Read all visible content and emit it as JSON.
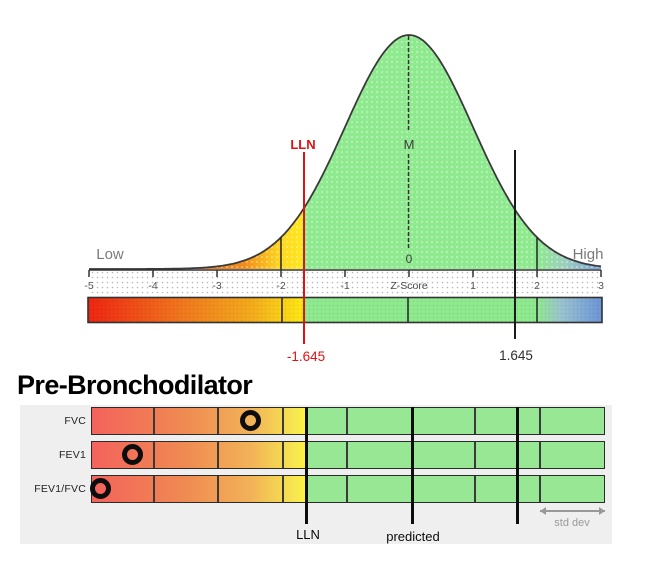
{
  "distribution_chart": {
    "low_label": "Low",
    "high_label": "High",
    "lln_label": "LLN",
    "mean_label": "M",
    "zero_label": "0",
    "axis_label": "Z-Score",
    "tick_labels": [
      "-5",
      "-4",
      "-3",
      "-2",
      "-1",
      "1",
      "2",
      "3"
    ],
    "lln_value_label": "-1.645",
    "uln_value_label": "1.645",
    "colors": {
      "normal_zone_green": "#8fe98f",
      "borderline_yellow": "#ffe819",
      "abnormal_orange": "#f0761e",
      "abnormal_red": "#ee2512",
      "high_zone_blue": "#6b94d6",
      "lln_line_red": "#e31212",
      "uln_line_black": "#1a1a1a"
    }
  },
  "pre_bronchodilator": {
    "title": "Pre-Bronchodilator",
    "rows": [
      {
        "label": "FVC",
        "z_score": -2.51
      },
      {
        "label": "FEV1",
        "z_score": -4.35
      },
      {
        "label": "FEV1/FVC",
        "z_score": -4.84
      }
    ],
    "lln_label": "LLN",
    "predicted_label": "predicted",
    "std_dev_label": "std dev",
    "panel_background": "#efefef"
  },
  "chart_data": [
    {
      "type": "area",
      "title": "Normal distribution of Z-Scores with limits of normal",
      "xlabel": "Z-Score",
      "x_ticks": [
        -5,
        -4,
        -3,
        -2,
        -1,
        0,
        1,
        2,
        3
      ],
      "xlim": [
        -5,
        3
      ],
      "curve": "standard normal probability density centered at M (z=0)",
      "reference_lines": [
        {
          "label": "LLN",
          "value_label": "-1.645",
          "x": -1.645,
          "color": "#e31212"
        },
        {
          "label": "",
          "value_label": "1.645",
          "x": 1.645,
          "color": "#1a1a1a"
        },
        {
          "label": "M",
          "x": 0,
          "style": "dashed"
        }
      ],
      "zones": [
        {
          "range": [
            -5,
            -2
          ],
          "meaning": "abnormal",
          "color": "red-orange gradient"
        },
        {
          "range": [
            -2,
            -1.645
          ],
          "meaning": "borderline",
          "color": "yellow"
        },
        {
          "range": [
            -1.645,
            2
          ],
          "meaning": "normal",
          "color": "green"
        },
        {
          "range": [
            2,
            3
          ],
          "meaning": "above normal",
          "color": "blue"
        }
      ],
      "annotations": [
        {
          "text": "Low",
          "x": -4.7
        },
        {
          "text": "High",
          "x": 2.8
        },
        {
          "text": "0",
          "x": 0
        }
      ]
    },
    {
      "type": "scatter",
      "title": "Pre-Bronchodilator",
      "categories": [
        "FVC",
        "FEV1",
        "FEV1/FVC"
      ],
      "z_scores": [
        -2.51,
        -4.35,
        -4.84
      ],
      "xlim": [
        -5,
        3
      ],
      "reference_lines": [
        {
          "label": "LLN",
          "x": -1.645
        },
        {
          "label": "predicted",
          "x": 0
        },
        {
          "label": "",
          "x": 1.645
        }
      ],
      "std_dev_bracket": {
        "label": "std dev",
        "range": [
          2,
          3
        ]
      }
    }
  ]
}
